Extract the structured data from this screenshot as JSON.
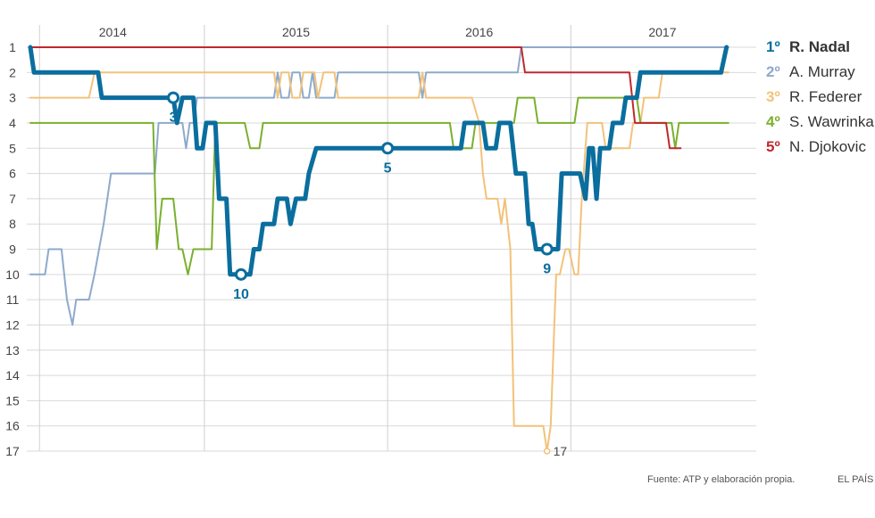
{
  "chart_data": {
    "type": "line",
    "title": "",
    "xlabel": "",
    "ylabel": "",
    "x_range": [
      2013.55,
      2017.4
    ],
    "ylim": [
      1,
      17
    ],
    "y_reversed": true,
    "grid": true,
    "y_ticks": [
      "1",
      "2",
      "3",
      "4",
      "5",
      "6",
      "7",
      "8",
      "9",
      "10",
      "11",
      "12",
      "13",
      "14",
      "15",
      "16",
      "17"
    ],
    "year_labels": [
      {
        "x": 2014.0,
        "text": "2014"
      },
      {
        "x": 2015.0,
        "text": "2015"
      },
      {
        "x": 2016.0,
        "text": "2016"
      },
      {
        "x": 2017.0,
        "text": "2017"
      }
    ],
    "year_dividers": [
      2013.6,
      2014.5,
      2015.5,
      2016.5
    ],
    "legend_position": "right",
    "series": [
      {
        "name": "A. Murray",
        "rank_label": "2º",
        "color": "#8eaacb",
        "width": 2,
        "points": [
          [
            2013.55,
            10
          ],
          [
            2013.63,
            10
          ],
          [
            2013.65,
            9
          ],
          [
            2013.72,
            9
          ],
          [
            2013.75,
            11
          ],
          [
            2013.78,
            12
          ],
          [
            2013.8,
            11
          ],
          [
            2013.87,
            11
          ],
          [
            2013.9,
            10
          ],
          [
            2013.95,
            8
          ],
          [
            2013.99,
            6
          ],
          [
            2014.02,
            6
          ],
          [
            2014.23,
            6
          ],
          [
            2014.25,
            4
          ],
          [
            2014.38,
            4
          ],
          [
            2014.4,
            5
          ],
          [
            2014.42,
            4
          ],
          [
            2014.44,
            4
          ],
          [
            2014.46,
            3
          ],
          [
            2014.88,
            3
          ],
          [
            2014.9,
            2
          ],
          [
            2014.92,
            3
          ],
          [
            2014.96,
            3
          ],
          [
            2014.98,
            2
          ],
          [
            2015.02,
            2
          ],
          [
            2015.04,
            3
          ],
          [
            2015.07,
            3
          ],
          [
            2015.09,
            2
          ],
          [
            2015.11,
            3
          ],
          [
            2015.21,
            3
          ],
          [
            2015.23,
            2
          ],
          [
            2015.67,
            2
          ],
          [
            2015.69,
            3
          ],
          [
            2015.71,
            2
          ],
          [
            2015.75,
            2
          ],
          [
            2016.0,
            2
          ],
          [
            2016.21,
            2
          ],
          [
            2016.23,
            1
          ],
          [
            2017.36,
            1
          ]
        ]
      },
      {
        "name": "R. Federer",
        "rank_label": "3º",
        "color": "#f2c27a",
        "width": 2,
        "points": [
          [
            2013.55,
            3
          ],
          [
            2013.87,
            3
          ],
          [
            2013.9,
            2
          ],
          [
            2014.88,
            2
          ],
          [
            2014.9,
            3
          ],
          [
            2014.92,
            2
          ],
          [
            2014.96,
            2
          ],
          [
            2014.98,
            3
          ],
          [
            2015.02,
            3
          ],
          [
            2015.04,
            2
          ],
          [
            2015.1,
            2
          ],
          [
            2015.12,
            3
          ],
          [
            2015.15,
            2
          ],
          [
            2015.21,
            2
          ],
          [
            2015.23,
            3
          ],
          [
            2015.67,
            3
          ],
          [
            2015.69,
            2
          ],
          [
            2015.71,
            3
          ],
          [
            2015.96,
            3
          ],
          [
            2016.0,
            4
          ],
          [
            2016.02,
            6
          ],
          [
            2016.04,
            7
          ],
          [
            2016.1,
            7
          ],
          [
            2016.12,
            8
          ],
          [
            2016.14,
            7
          ],
          [
            2016.17,
            9
          ],
          [
            2016.19,
            16
          ],
          [
            2016.35,
            16
          ],
          [
            2016.37,
            17
          ],
          [
            2016.39,
            16
          ],
          [
            2016.42,
            10
          ],
          [
            2016.44,
            10
          ],
          [
            2016.47,
            9
          ],
          [
            2016.49,
            9
          ],
          [
            2016.52,
            10
          ],
          [
            2016.54,
            10
          ],
          [
            2016.56,
            7
          ],
          [
            2016.59,
            4
          ],
          [
            2016.67,
            4
          ],
          [
            2016.69,
            5
          ],
          [
            2016.82,
            5
          ],
          [
            2016.84,
            4
          ],
          [
            2016.88,
            4
          ],
          [
            2016.9,
            3
          ],
          [
            2016.98,
            3
          ],
          [
            2017.0,
            2
          ],
          [
            2017.36,
            2
          ]
        ]
      },
      {
        "name": "S. Wawrinka",
        "rank_label": "4º",
        "color": "#7ab02e",
        "width": 2,
        "points": [
          [
            2013.55,
            4
          ],
          [
            2014.22,
            4
          ],
          [
            2014.24,
            9
          ],
          [
            2014.27,
            7
          ],
          [
            2014.33,
            7
          ],
          [
            2014.36,
            9
          ],
          [
            2014.38,
            9
          ],
          [
            2014.41,
            10
          ],
          [
            2014.44,
            9
          ],
          [
            2014.54,
            9
          ],
          [
            2014.56,
            4
          ],
          [
            2014.72,
            4
          ],
          [
            2014.75,
            5
          ],
          [
            2014.8,
            5
          ],
          [
            2014.82,
            4
          ],
          [
            2015.84,
            4
          ],
          [
            2015.86,
            5
          ],
          [
            2015.96,
            5
          ],
          [
            2015.98,
            4
          ],
          [
            2016.19,
            4
          ],
          [
            2016.21,
            3
          ],
          [
            2016.3,
            3
          ],
          [
            2016.32,
            4
          ],
          [
            2016.52,
            4
          ],
          [
            2016.54,
            3
          ],
          [
            2016.86,
            3
          ],
          [
            2016.88,
            4
          ],
          [
            2017.05,
            4
          ],
          [
            2017.07,
            5
          ],
          [
            2017.09,
            4
          ],
          [
            2017.36,
            4
          ]
        ]
      },
      {
        "name": "N. Djokovic",
        "rank_label": "5º",
        "color": "#c0282d",
        "width": 2,
        "points": [
          [
            2013.55,
            1
          ],
          [
            2016.23,
            1
          ],
          [
            2016.25,
            2
          ],
          [
            2016.82,
            2
          ],
          [
            2016.85,
            4
          ],
          [
            2017.02,
            4
          ],
          [
            2017.04,
            5
          ],
          [
            2017.1,
            5
          ]
        ]
      },
      {
        "name": "R. Nadal",
        "rank_label": "1º",
        "color": "#0a6e9e",
        "width": 5,
        "points": [
          [
            2013.55,
            1
          ],
          [
            2013.57,
            2
          ],
          [
            2013.92,
            2
          ],
          [
            2013.94,
            3
          ],
          [
            2014.33,
            3
          ],
          [
            2014.35,
            4
          ],
          [
            2014.38,
            3
          ],
          [
            2014.44,
            3
          ],
          [
            2014.46,
            5
          ],
          [
            2014.49,
            5
          ],
          [
            2014.51,
            4
          ],
          [
            2014.56,
            4
          ],
          [
            2014.58,
            7
          ],
          [
            2014.62,
            7
          ],
          [
            2014.64,
            10
          ],
          [
            2014.75,
            10
          ],
          [
            2014.77,
            9
          ],
          [
            2014.8,
            9
          ],
          [
            2014.82,
            8
          ],
          [
            2014.88,
            8
          ],
          [
            2014.9,
            7
          ],
          [
            2014.95,
            7
          ],
          [
            2014.97,
            8
          ],
          [
            2015.0,
            7
          ],
          [
            2015.05,
            7
          ],
          [
            2015.07,
            6
          ],
          [
            2015.11,
            5
          ],
          [
            2015.5,
            5
          ],
          [
            2015.9,
            5
          ],
          [
            2015.92,
            4
          ],
          [
            2016.02,
            4
          ],
          [
            2016.04,
            5
          ],
          [
            2016.09,
            5
          ],
          [
            2016.11,
            4
          ],
          [
            2016.17,
            4
          ],
          [
            2016.2,
            6
          ],
          [
            2016.25,
            6
          ],
          [
            2016.27,
            8
          ],
          [
            2016.29,
            8
          ],
          [
            2016.31,
            9
          ],
          [
            2016.43,
            9
          ],
          [
            2016.45,
            6
          ],
          [
            2016.55,
            6
          ],
          [
            2016.58,
            7
          ],
          [
            2016.6,
            5
          ],
          [
            2016.62,
            5
          ],
          [
            2016.64,
            7
          ],
          [
            2016.66,
            5
          ],
          [
            2016.71,
            5
          ],
          [
            2016.73,
            4
          ],
          [
            2016.78,
            4
          ],
          [
            2016.8,
            3
          ],
          [
            2016.86,
            3
          ],
          [
            2016.88,
            2
          ],
          [
            2017.32,
            2
          ],
          [
            2017.35,
            1
          ]
        ]
      }
    ],
    "annotations": [
      {
        "series": "R. Nadal",
        "x": 2014.33,
        "y": 3,
        "text": "3",
        "marker": true
      },
      {
        "series": "R. Nadal",
        "x": 2014.7,
        "y": 10,
        "text": "10",
        "marker": true
      },
      {
        "series": "R. Nadal",
        "x": 2015.5,
        "y": 5,
        "text": "5",
        "marker": true
      },
      {
        "series": "R. Nadal",
        "x": 2016.37,
        "y": 9,
        "text": "9",
        "marker": true
      },
      {
        "series": "R. Federer",
        "x": 2016.37,
        "y": 17,
        "text": "17",
        "marker": true
      }
    ],
    "legend": [
      {
        "rank": "1º",
        "name": "R. Nadal",
        "color": "#0a6e9e",
        "highlight": true
      },
      {
        "rank": "2º",
        "name": "A. Murray",
        "color": "#8eaacb",
        "highlight": false
      },
      {
        "rank": "3º",
        "name": "R. Federer",
        "color": "#f2c27a",
        "highlight": false
      },
      {
        "rank": "4º",
        "name": "S. Wawrinka",
        "color": "#7ab02e",
        "highlight": false
      },
      {
        "rank": "5º",
        "name": "N. Djokovic",
        "color": "#c0282d",
        "highlight": false
      }
    ]
  },
  "footer": {
    "source": "Fuente: ATP y elaboración propia.",
    "brand": "EL PAÍS"
  }
}
